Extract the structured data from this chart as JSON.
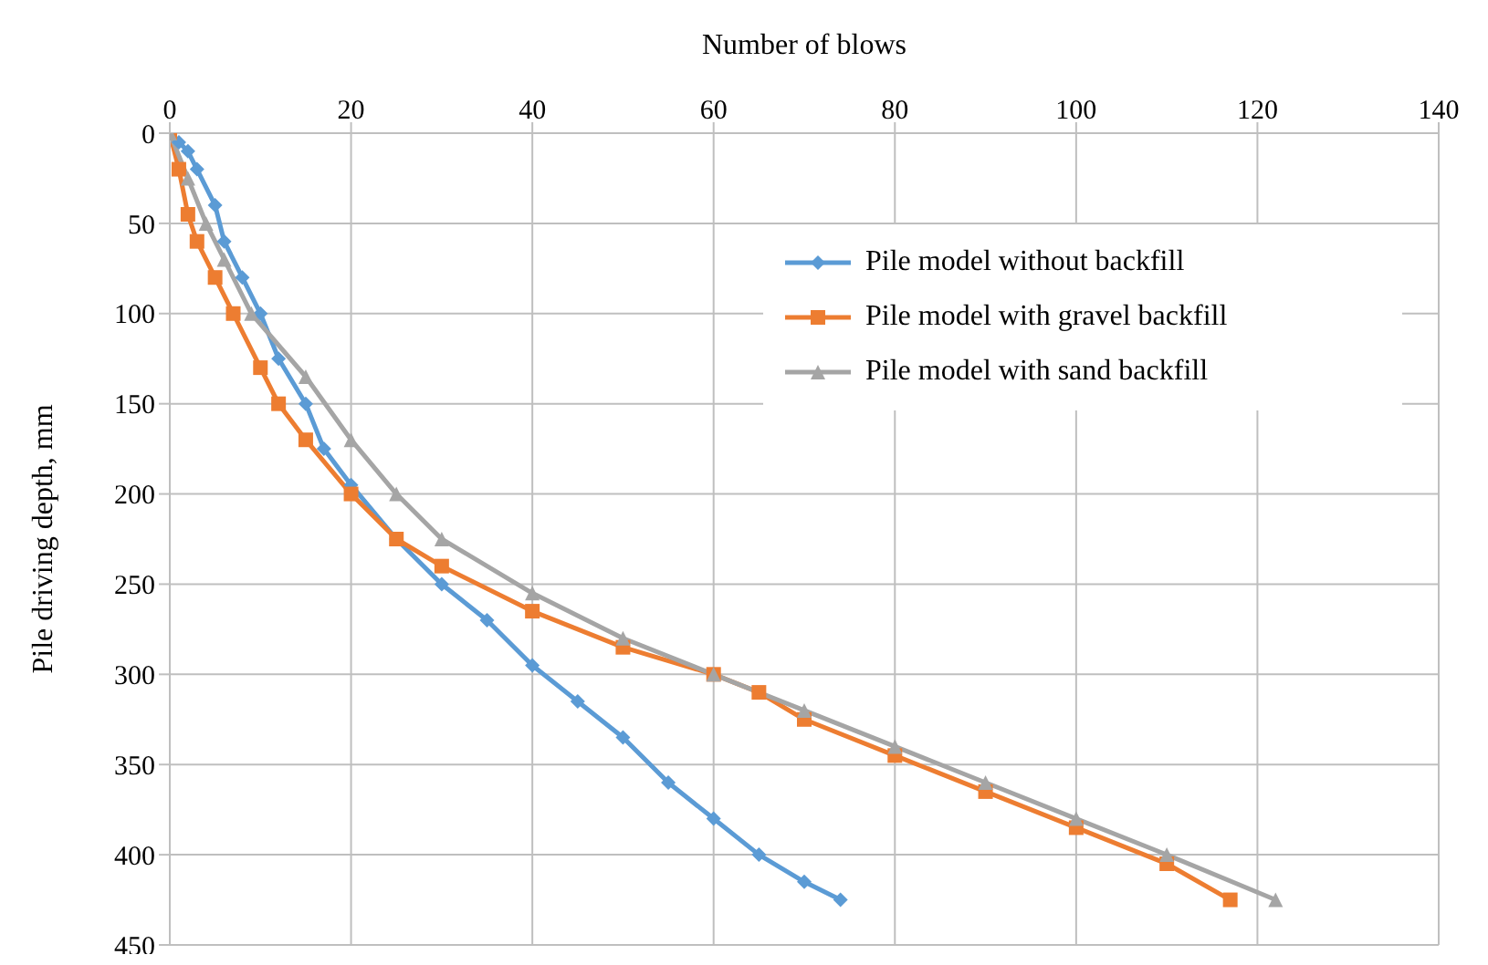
{
  "chart_data": {
    "type": "line",
    "xlabel": "Number of blows",
    "ylabel": "Pile driving depth, mm",
    "xlim": [
      0,
      140
    ],
    "xticks": [
      0,
      20,
      40,
      60,
      80,
      100,
      120,
      140
    ],
    "ylim": [
      450,
      0
    ],
    "yticks": [
      0,
      50,
      100,
      150,
      200,
      250,
      300,
      350,
      400,
      450
    ],
    "grid": true,
    "legend": "top right",
    "series": [
      {
        "name": "Pile model without backfill",
        "color": "#5b9bd5",
        "marker": "diamond",
        "x": [
          0,
          1,
          2,
          3,
          5,
          6,
          8,
          10,
          12,
          15,
          17,
          20,
          25,
          30,
          35,
          40,
          45,
          50,
          55,
          60,
          65,
          70,
          74
        ],
        "values": [
          0,
          5,
          10,
          20,
          40,
          60,
          80,
          100,
          125,
          150,
          175,
          195,
          225,
          250,
          270,
          295,
          315,
          335,
          360,
          380,
          400,
          415,
          425
        ]
      },
      {
        "name": "Pile model with gravel backfill",
        "color": "#ed7d31",
        "marker": "square",
        "x": [
          0,
          1,
          2,
          3,
          5,
          7,
          10,
          12,
          15,
          20,
          25,
          30,
          40,
          50,
          60,
          65,
          70,
          80,
          90,
          100,
          110,
          117
        ],
        "values": [
          0,
          20,
          45,
          60,
          80,
          100,
          130,
          150,
          170,
          200,
          225,
          240,
          265,
          285,
          300,
          310,
          325,
          345,
          365,
          385,
          405,
          425
        ]
      },
      {
        "name": "Pile model with sand backfill",
        "color": "#a5a5a5",
        "marker": "triangle",
        "x": [
          0,
          2,
          4,
          6,
          9,
          15,
          20,
          25,
          30,
          40,
          50,
          60,
          70,
          80,
          90,
          100,
          110,
          122
        ],
        "values": [
          0,
          25,
          50,
          70,
          100,
          135,
          170,
          200,
          225,
          255,
          280,
          300,
          320,
          340,
          360,
          380,
          400,
          425
        ]
      }
    ]
  }
}
